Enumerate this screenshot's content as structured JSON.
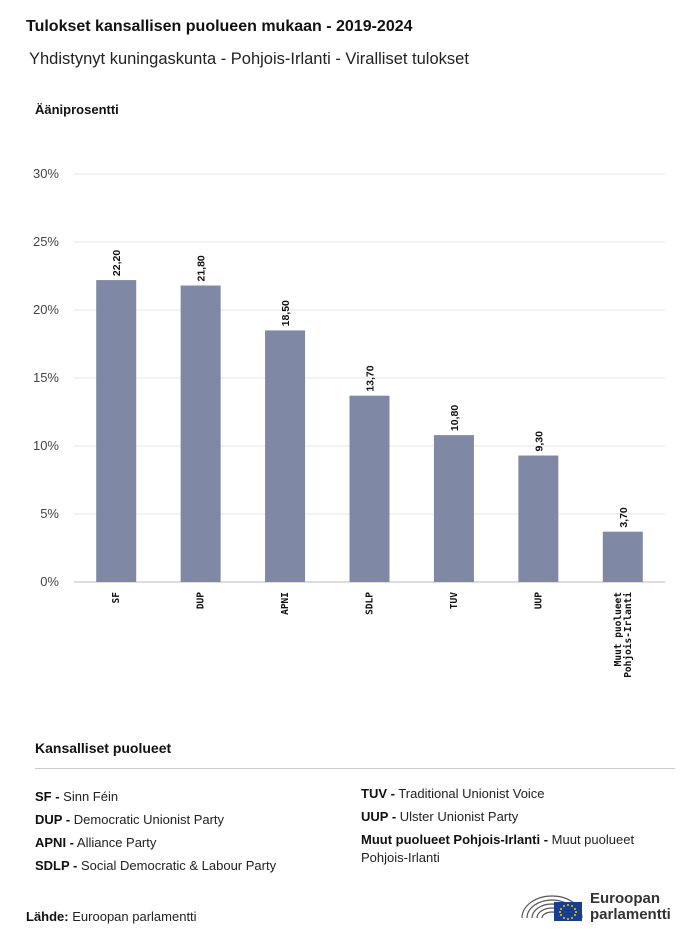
{
  "header": {
    "title": "Tulokset kansallisen puolueen mukaan - 2019-2024",
    "subtitle": "Yhdistynyt kuningaskunta - Pohjois-Irlanti - Viralliset tulokset"
  },
  "chart_data": {
    "type": "bar",
    "ylabel": "Ääniprosentti",
    "xlabel": "",
    "categories": [
      "SF",
      "DUP",
      "APNI",
      "SDLP",
      "TUV",
      "UUP",
      "Muut puolueet Pohjois-Irlanti"
    ],
    "category_lines": [
      [
        "SF"
      ],
      [
        "DUP"
      ],
      [
        "APNI"
      ],
      [
        "SDLP"
      ],
      [
        "TUV"
      ],
      [
        "UUP"
      ],
      [
        "Muut puolueet",
        "Pohjois-Irlanti"
      ]
    ],
    "values": [
      22.2,
      21.8,
      18.5,
      13.7,
      10.8,
      9.3,
      3.7
    ],
    "value_labels": [
      "22,20",
      "21,80",
      "18,50",
      "13,70",
      "10,80",
      "9,30",
      "3,70"
    ],
    "ylim": [
      0,
      30
    ],
    "yticks": [
      0,
      5,
      10,
      15,
      20,
      25,
      30
    ],
    "ytick_labels": [
      "0%",
      "5%",
      "10%",
      "15%",
      "20%",
      "25%",
      "30%"
    ],
    "grid": true,
    "bar_color": "#7f89a5"
  },
  "legend": {
    "title": "Kansalliset puolueet",
    "left": [
      {
        "abbr": "SF -",
        "name": "Sinn Féin"
      },
      {
        "abbr": "DUP -",
        "name": "Democratic Unionist Party"
      },
      {
        "abbr": "APNI -",
        "name": "Alliance Party"
      },
      {
        "abbr": "SDLP -",
        "name": "Social Democratic & Labour Party"
      }
    ],
    "right": [
      {
        "abbr": "TUV -",
        "name": "Traditional Unionist Voice"
      },
      {
        "abbr": "UUP -",
        "name": "Ulster Unionist Party"
      },
      {
        "abbr": "Muut puolueet Pohjois-Irlanti -",
        "name": "Muut puolueet Pohjois-Irlanti"
      }
    ]
  },
  "footer": {
    "source_label": "Lähde:",
    "source_value": "Euroopan parlamentti",
    "logo_line1": "Euroopan",
    "logo_line2": "parlamentti"
  }
}
